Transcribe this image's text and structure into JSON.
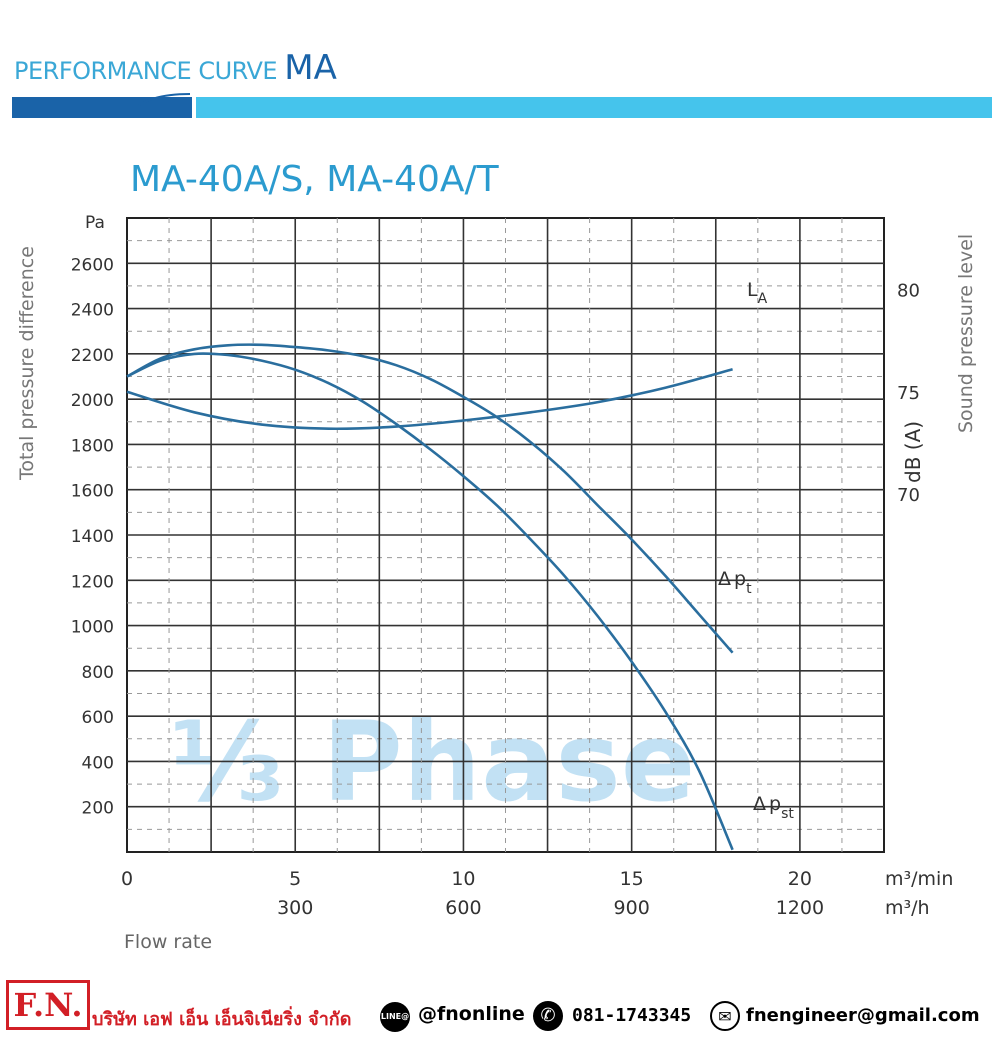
{
  "header": {
    "prefix": "PERFORMANCE CURVE",
    "model_line": "MA"
  },
  "chart_data": {
    "type": "line",
    "title": "MA-40A/S, MA-40A/T",
    "watermark": "⅓ Phase",
    "x_unit_1": "m³/min",
    "x_unit_2": "m³/h",
    "xlabel": "Flow rate",
    "x_ticks_min": [
      "0",
      "5",
      "10",
      "15",
      "20"
    ],
    "x_ticks_h": [
      "300",
      "600",
      "900",
      "1200"
    ],
    "xlim": [
      0,
      22.5
    ],
    "ylabel_left": "Total pressure difference",
    "y_unit_left": "Pa",
    "y_ticks_left": [
      "200",
      "400",
      "600",
      "800",
      "1000",
      "1200",
      "1400",
      "1600",
      "1800",
      "2000",
      "2200",
      "2400",
      "2600"
    ],
    "ylim_left": [
      0,
      2800
    ],
    "ylabel_right": "Sound pressure level",
    "y_unit_right": "dB (A)",
    "y_ticks_right": [
      "70",
      "75",
      "80"
    ],
    "ylim_right": [
      52.5,
      83.5
    ],
    "grid": true,
    "series": [
      {
        "name": "Δ pt",
        "axis": "left",
        "x": [
          0,
          1,
          2,
          3,
          4,
          5,
          6,
          7,
          8,
          9,
          10,
          11,
          12,
          13,
          14,
          15,
          16,
          17,
          18
        ],
        "y": [
          2100,
          2180,
          2220,
          2238,
          2240,
          2230,
          2215,
          2190,
          2150,
          2090,
          2010,
          1920,
          1810,
          1680,
          1530,
          1380,
          1220,
          1050,
          880
        ]
      },
      {
        "name": "Δ pst",
        "axis": "left",
        "x": [
          0,
          1,
          2,
          3,
          4,
          5,
          6,
          7,
          8,
          9,
          10,
          11,
          12,
          13,
          14,
          15,
          16,
          17,
          18
        ],
        "y": [
          2100,
          2170,
          2200,
          2195,
          2170,
          2130,
          2070,
          1990,
          1890,
          1780,
          1660,
          1530,
          1380,
          1220,
          1040,
          840,
          620,
          360,
          10
        ]
      },
      {
        "name": "LA",
        "axis": "right",
        "x": [
          0,
          2,
          4,
          6,
          8,
          10,
          12,
          14,
          16,
          18
        ],
        "y": [
          75.0,
          74.0,
          73.4,
          73.2,
          73.3,
          73.6,
          74.0,
          74.5,
          75.2,
          76.1
        ]
      }
    ],
    "labels": {
      "pt": {
        "delta": "Δ",
        "base": "p",
        "sub": "t"
      },
      "pst": {
        "delta": "Δ",
        "base": "p",
        "sub": "st"
      },
      "la": {
        "base": "L",
        "sub": "A"
      }
    }
  },
  "footer": {
    "logo": "F.N.",
    "company": "บริษัท เอฟ เอ็น เอ็นจิเนียริ่ง จำกัด",
    "line_icon": "LINE@",
    "line_id": "@fnonline",
    "phone_icon": "✆",
    "phone": "081-1743345",
    "mail_icon": "✉",
    "email": "fnengineer@gmail.com"
  }
}
